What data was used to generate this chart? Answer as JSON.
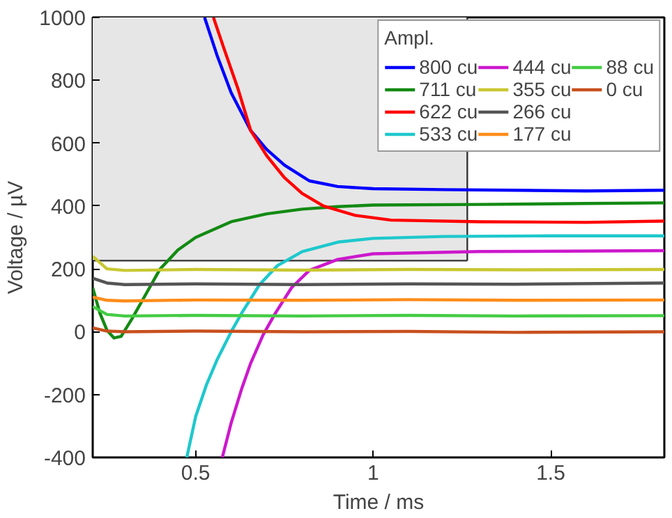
{
  "chart_data": {
    "type": "line",
    "xlabel": "Time / ms",
    "ylabel": "Voltage / µV",
    "legend_title": "Ampl.",
    "xlim": [
      0.21,
      1.82
    ],
    "ylim": [
      -400,
      1000
    ],
    "xticks": [
      0.5,
      1,
      1.5
    ],
    "yticks": [
      -400,
      -200,
      0,
      200,
      400,
      600,
      800,
      1000
    ],
    "grid": false,
    "legend": "top right",
    "line_style": "solid",
    "marker": "none",
    "bands": [
      {
        "axis": "x",
        "from": 0.21,
        "to": 1.265,
        "color": "#e6e6e6"
      }
    ],
    "ref_lines": [
      {
        "axis": "y",
        "value": 226,
        "color": "#333333"
      },
      {
        "axis": "x",
        "value": 1.265,
        "color": "#333333"
      }
    ],
    "series": [
      {
        "name": "800 cu",
        "color": "#0000ff",
        "x": [
          0.525,
          0.56,
          0.6,
          0.655,
          0.7,
          0.75,
          0.82,
          0.9,
          1.0,
          1.2,
          1.4,
          1.6,
          1.82
        ],
        "values": [
          1000,
          880,
          760,
          640,
          580,
          530,
          480,
          462,
          455,
          452,
          450,
          448,
          450
        ]
      },
      {
        "name": "711 cu",
        "color": "#138a13",
        "x": [
          0.21,
          0.23,
          0.25,
          0.27,
          0.29,
          0.32,
          0.36,
          0.4,
          0.45,
          0.5,
          0.6,
          0.7,
          0.8,
          0.9,
          1.0,
          1.3,
          1.6,
          1.82
        ],
        "values": [
          140,
          60,
          5,
          -20,
          -15,
          40,
          120,
          200,
          260,
          300,
          350,
          375,
          390,
          398,
          403,
          405,
          408,
          410
        ]
      },
      {
        "name": "622 cu",
        "color": "#ff0000",
        "x": [
          0.55,
          0.58,
          0.62,
          0.655,
          0.7,
          0.75,
          0.8,
          0.86,
          0.95,
          1.05,
          1.3,
          1.6,
          1.82
        ],
        "values": [
          1000,
          900,
          770,
          640,
          560,
          490,
          440,
          400,
          370,
          355,
          350,
          348,
          352
        ]
      },
      {
        "name": "533 cu",
        "color": "#1ec8cc",
        "x": [
          0.475,
          0.5,
          0.53,
          0.56,
          0.6,
          0.63,
          0.68,
          0.73,
          0.8,
          0.9,
          1.0,
          1.2,
          1.5,
          1.82
        ],
        "values": [
          -400,
          -270,
          -170,
          -90,
          0,
          60,
          150,
          210,
          255,
          285,
          297,
          303,
          305,
          305
        ]
      },
      {
        "name": "444 cu",
        "color": "#cc18cc",
        "x": [
          0.575,
          0.6,
          0.63,
          0.655,
          0.69,
          0.725,
          0.77,
          0.82,
          0.9,
          1.0,
          1.3,
          1.82
        ],
        "values": [
          -400,
          -290,
          -180,
          -100,
          -10,
          60,
          140,
          195,
          230,
          248,
          255,
          258
        ]
      },
      {
        "name": "355 cu",
        "color": "#c8c832",
        "x": [
          0.21,
          0.25,
          0.3,
          0.5,
          0.8,
          1.1,
          1.4,
          1.82
        ],
        "values": [
          240,
          200,
          195,
          198,
          196,
          198,
          197,
          198
        ]
      },
      {
        "name": "266 cu",
        "color": "#555555",
        "x": [
          0.21,
          0.25,
          0.3,
          0.5,
          0.8,
          1.1,
          1.4,
          1.82
        ],
        "values": [
          170,
          155,
          150,
          152,
          150,
          152,
          151,
          155
        ]
      },
      {
        "name": "177 cu",
        "color": "#ff8c1a",
        "x": [
          0.21,
          0.25,
          0.3,
          0.5,
          0.8,
          1.1,
          1.4,
          1.82
        ],
        "values": [
          110,
          100,
          98,
          101,
          100,
          102,
          100,
          101
        ]
      },
      {
        "name": "88 cu",
        "color": "#44cc44",
        "x": [
          0.21,
          0.25,
          0.3,
          0.5,
          0.8,
          1.1,
          1.4,
          1.82
        ],
        "values": [
          80,
          55,
          50,
          52,
          50,
          52,
          50,
          51
        ]
      },
      {
        "name": "0 cu",
        "color": "#c8501e",
        "x": [
          0.21,
          0.25,
          0.3,
          0.5,
          0.8,
          1.1,
          1.4,
          1.82
        ],
        "values": [
          12,
          2,
          0,
          2,
          0,
          1,
          -2,
          0
        ]
      }
    ]
  }
}
